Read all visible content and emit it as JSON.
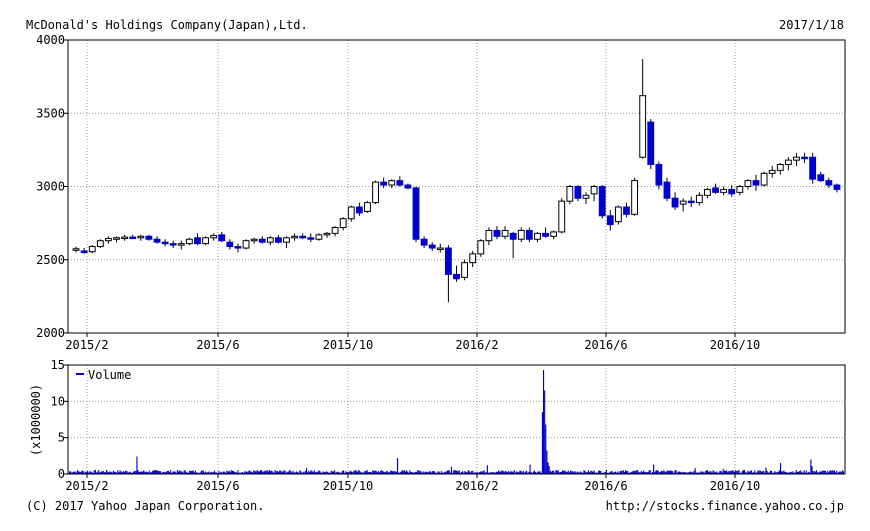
{
  "header": {
    "company": "McDonald's Holdings Company(Japan),Ltd.",
    "date": "2017/1/18"
  },
  "footer": {
    "copyright": "(C) 2017 Yahoo Japan Corporation.",
    "url": "http://stocks.finance.yahoo.co.jp"
  },
  "colors": {
    "up": "#ffffff",
    "down": "#0000cc",
    "volume": "#0000cc",
    "grid": "#999999"
  },
  "chart_data": [
    {
      "type": "candlestick",
      "title": "",
      "xlabel": "",
      "ylabel": "",
      "x_ticks": [
        "2015/2",
        "2015/6",
        "2015/10",
        "2016/2",
        "2016/6",
        "2016/10"
      ],
      "ylim": [
        2000,
        4000
      ],
      "y_ticks": [
        2000,
        2500,
        3000,
        3500,
        4000
      ],
      "grid": true,
      "series_note": "weekly OHLC, approx values read from chart",
      "candles": [
        {
          "o": 2570,
          "h": 2590,
          "l": 2550,
          "c": 2575
        },
        {
          "o": 2560,
          "h": 2580,
          "l": 2540,
          "c": 2555
        },
        {
          "o": 2555,
          "h": 2600,
          "l": 2545,
          "c": 2590
        },
        {
          "o": 2590,
          "h": 2640,
          "l": 2580,
          "c": 2630
        },
        {
          "o": 2630,
          "h": 2660,
          "l": 2610,
          "c": 2645
        },
        {
          "o": 2640,
          "h": 2660,
          "l": 2620,
          "c": 2650
        },
        {
          "o": 2650,
          "h": 2670,
          "l": 2630,
          "c": 2655
        },
        {
          "o": 2655,
          "h": 2670,
          "l": 2640,
          "c": 2650
        },
        {
          "o": 2650,
          "h": 2670,
          "l": 2630,
          "c": 2660
        },
        {
          "o": 2660,
          "h": 2670,
          "l": 2630,
          "c": 2640
        },
        {
          "o": 2640,
          "h": 2660,
          "l": 2610,
          "c": 2620
        },
        {
          "o": 2620,
          "h": 2640,
          "l": 2590,
          "c": 2610
        },
        {
          "o": 2610,
          "h": 2630,
          "l": 2580,
          "c": 2600
        },
        {
          "o": 2600,
          "h": 2630,
          "l": 2570,
          "c": 2610
        },
        {
          "o": 2610,
          "h": 2650,
          "l": 2600,
          "c": 2640
        },
        {
          "o": 2650,
          "h": 2680,
          "l": 2600,
          "c": 2610
        },
        {
          "o": 2610,
          "h": 2660,
          "l": 2600,
          "c": 2650
        },
        {
          "o": 2650,
          "h": 2680,
          "l": 2630,
          "c": 2665
        },
        {
          "o": 2670,
          "h": 2690,
          "l": 2620,
          "c": 2630
        },
        {
          "o": 2620,
          "h": 2640,
          "l": 2570,
          "c": 2590
        },
        {
          "o": 2590,
          "h": 2610,
          "l": 2550,
          "c": 2580
        },
        {
          "o": 2580,
          "h": 2640,
          "l": 2570,
          "c": 2630
        },
        {
          "o": 2630,
          "h": 2650,
          "l": 2610,
          "c": 2640
        },
        {
          "o": 2640,
          "h": 2660,
          "l": 2610,
          "c": 2620
        },
        {
          "o": 2620,
          "h": 2660,
          "l": 2600,
          "c": 2650
        },
        {
          "o": 2650,
          "h": 2670,
          "l": 2610,
          "c": 2620
        },
        {
          "o": 2620,
          "h": 2660,
          "l": 2580,
          "c": 2650
        },
        {
          "o": 2650,
          "h": 2680,
          "l": 2630,
          "c": 2660
        },
        {
          "o": 2660,
          "h": 2680,
          "l": 2640,
          "c": 2650
        },
        {
          "o": 2650,
          "h": 2680,
          "l": 2620,
          "c": 2640
        },
        {
          "o": 2640,
          "h": 2680,
          "l": 2630,
          "c": 2670
        },
        {
          "o": 2670,
          "h": 2690,
          "l": 2650,
          "c": 2680
        },
        {
          "o": 2680,
          "h": 2730,
          "l": 2660,
          "c": 2720
        },
        {
          "o": 2720,
          "h": 2790,
          "l": 2700,
          "c": 2780
        },
        {
          "o": 2780,
          "h": 2870,
          "l": 2760,
          "c": 2860
        },
        {
          "o": 2860,
          "h": 2890,
          "l": 2800,
          "c": 2820
        },
        {
          "o": 2830,
          "h": 2900,
          "l": 2820,
          "c": 2890
        },
        {
          "o": 2890,
          "h": 3040,
          "l": 2880,
          "c": 3030
        },
        {
          "o": 3030,
          "h": 3060,
          "l": 2990,
          "c": 3010
        },
        {
          "o": 3010,
          "h": 3050,
          "l": 2990,
          "c": 3040
        },
        {
          "o": 3040,
          "h": 3070,
          "l": 3000,
          "c": 3010
        },
        {
          "o": 3010,
          "h": 3020,
          "l": 2980,
          "c": 2990
        },
        {
          "o": 2990,
          "h": 3000,
          "l": 2620,
          "c": 2640
        },
        {
          "o": 2640,
          "h": 2660,
          "l": 2580,
          "c": 2600
        },
        {
          "o": 2600,
          "h": 2620,
          "l": 2560,
          "c": 2580
        },
        {
          "o": 2580,
          "h": 2610,
          "l": 2550,
          "c": 2580
        },
        {
          "o": 2580,
          "h": 2600,
          "l": 2210,
          "c": 2400
        },
        {
          "o": 2400,
          "h": 2460,
          "l": 2350,
          "c": 2370
        },
        {
          "o": 2380,
          "h": 2500,
          "l": 2360,
          "c": 2480
        },
        {
          "o": 2480,
          "h": 2560,
          "l": 2450,
          "c": 2540
        },
        {
          "o": 2540,
          "h": 2640,
          "l": 2520,
          "c": 2630
        },
        {
          "o": 2630,
          "h": 2720,
          "l": 2600,
          "c": 2700
        },
        {
          "o": 2700,
          "h": 2730,
          "l": 2640,
          "c": 2660
        },
        {
          "o": 2660,
          "h": 2730,
          "l": 2640,
          "c": 2700
        },
        {
          "o": 2680,
          "h": 2690,
          "l": 2510,
          "c": 2640
        },
        {
          "o": 2640,
          "h": 2720,
          "l": 2620,
          "c": 2700
        },
        {
          "o": 2700,
          "h": 2720,
          "l": 2620,
          "c": 2640
        },
        {
          "o": 2640,
          "h": 2690,
          "l": 2620,
          "c": 2680
        },
        {
          "o": 2680,
          "h": 2720,
          "l": 2650,
          "c": 2660
        },
        {
          "o": 2660,
          "h": 2700,
          "l": 2640,
          "c": 2690
        },
        {
          "o": 2690,
          "h": 2920,
          "l": 2680,
          "c": 2900
        },
        {
          "o": 2900,
          "h": 3010,
          "l": 2880,
          "c": 3000
        },
        {
          "o": 3000,
          "h": 3010,
          "l": 2900,
          "c": 2920
        },
        {
          "o": 2920,
          "h": 2960,
          "l": 2880,
          "c": 2940
        },
        {
          "o": 2950,
          "h": 3010,
          "l": 2900,
          "c": 3000
        },
        {
          "o": 3000,
          "h": 3010,
          "l": 2780,
          "c": 2800
        },
        {
          "o": 2800,
          "h": 2840,
          "l": 2700,
          "c": 2740
        },
        {
          "o": 2760,
          "h": 2870,
          "l": 2740,
          "c": 2860
        },
        {
          "o": 2860,
          "h": 2890,
          "l": 2790,
          "c": 2810
        },
        {
          "o": 2810,
          "h": 3060,
          "l": 2800,
          "c": 3040
        },
        {
          "o": 3200,
          "h": 3870,
          "l": 3190,
          "c": 3620
        },
        {
          "o": 3440,
          "h": 3460,
          "l": 3120,
          "c": 3150
        },
        {
          "o": 3150,
          "h": 3170,
          "l": 2980,
          "c": 3010
        },
        {
          "o": 3030,
          "h": 3060,
          "l": 2900,
          "c": 2920
        },
        {
          "o": 2920,
          "h": 2960,
          "l": 2840,
          "c": 2860
        },
        {
          "o": 2880,
          "h": 2920,
          "l": 2830,
          "c": 2900
        },
        {
          "o": 2900,
          "h": 2930,
          "l": 2860,
          "c": 2890
        },
        {
          "o": 2890,
          "h": 2960,
          "l": 2870,
          "c": 2940
        },
        {
          "o": 2940,
          "h": 2990,
          "l": 2920,
          "c": 2980
        },
        {
          "o": 2990,
          "h": 3020,
          "l": 2950,
          "c": 2960
        },
        {
          "o": 2960,
          "h": 3000,
          "l": 2940,
          "c": 2980
        },
        {
          "o": 2980,
          "h": 3010,
          "l": 2930,
          "c": 2950
        },
        {
          "o": 2960,
          "h": 3010,
          "l": 2940,
          "c": 3000
        },
        {
          "o": 3000,
          "h": 3050,
          "l": 2980,
          "c": 3040
        },
        {
          "o": 3040,
          "h": 3080,
          "l": 2970,
          "c": 3010
        },
        {
          "o": 3010,
          "h": 3100,
          "l": 3000,
          "c": 3090
        },
        {
          "o": 3090,
          "h": 3140,
          "l": 3060,
          "c": 3110
        },
        {
          "o": 3110,
          "h": 3160,
          "l": 3080,
          "c": 3150
        },
        {
          "o": 3150,
          "h": 3200,
          "l": 3110,
          "c": 3180
        },
        {
          "o": 3180,
          "h": 3230,
          "l": 3140,
          "c": 3200
        },
        {
          "o": 3200,
          "h": 3230,
          "l": 3160,
          "c": 3190
        },
        {
          "o": 3200,
          "h": 3230,
          "l": 3020,
          "c": 3050
        },
        {
          "o": 3080,
          "h": 3100,
          "l": 3030,
          "c": 3040
        },
        {
          "o": 3040,
          "h": 3060,
          "l": 2990,
          "c": 3010
        },
        {
          "o": 3010,
          "h": 3020,
          "l": 2960,
          "c": 2980
        }
      ]
    },
    {
      "type": "bar",
      "title": "",
      "legend": "Volume",
      "ylabel": "(x1000000)",
      "xlabel": "",
      "x_ticks": [
        "2015/2",
        "2015/6",
        "2015/10",
        "2016/2",
        "2016/6",
        "2016/10"
      ],
      "ylim": [
        0,
        15
      ],
      "y_ticks": [
        0,
        5,
        10,
        15
      ],
      "grid": true,
      "spikes": [
        {
          "index": 60,
          "value": 2.4
        },
        {
          "index": 211,
          "value": 0.8
        },
        {
          "index": 292,
          "value": 2.2
        },
        {
          "index": 340,
          "value": 1.0
        },
        {
          "index": 372,
          "value": 1.2
        },
        {
          "index": 410,
          "value": 1.3
        },
        {
          "index": 421,
          "value": 8.5
        },
        {
          "index": 422,
          "value": 14.3
        },
        {
          "index": 423,
          "value": 11.5
        },
        {
          "index": 424,
          "value": 6.8
        },
        {
          "index": 425,
          "value": 3.2
        },
        {
          "index": 426,
          "value": 1.6
        },
        {
          "index": 427,
          "value": 1.1
        },
        {
          "index": 520,
          "value": 1.3
        },
        {
          "index": 557,
          "value": 0.8
        },
        {
          "index": 582,
          "value": 0.7
        },
        {
          "index": 620,
          "value": 0.9
        },
        {
          "index": 633,
          "value": 1.5
        },
        {
          "index": 660,
          "value": 2.0
        },
        {
          "index": 661,
          "value": 1.1
        }
      ],
      "baseline_range": [
        0.15,
        0.55
      ]
    }
  ]
}
